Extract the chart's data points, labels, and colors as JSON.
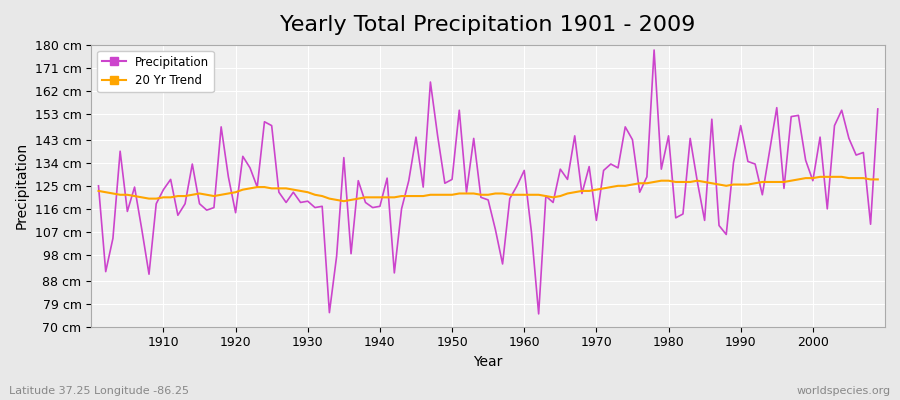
{
  "title": "Yearly Total Precipitation 1901 - 2009",
  "xlabel": "Year",
  "ylabel": "Precipitation",
  "subtitle": "Latitude 37.25 Longitude -86.25",
  "watermark": "worldspecies.org",
  "years": [
    1901,
    1902,
    1903,
    1904,
    1905,
    1906,
    1907,
    1908,
    1909,
    1910,
    1911,
    1912,
    1913,
    1914,
    1915,
    1916,
    1917,
    1918,
    1919,
    1920,
    1921,
    1922,
    1923,
    1924,
    1925,
    1926,
    1927,
    1928,
    1929,
    1930,
    1931,
    1932,
    1933,
    1934,
    1935,
    1936,
    1937,
    1938,
    1939,
    1940,
    1941,
    1942,
    1943,
    1944,
    1945,
    1946,
    1947,
    1948,
    1949,
    1950,
    1951,
    1952,
    1953,
    1954,
    1955,
    1956,
    1957,
    1958,
    1959,
    1960,
    1961,
    1962,
    1963,
    1964,
    1965,
    1966,
    1967,
    1968,
    1969,
    1970,
    1971,
    1972,
    1973,
    1974,
    1975,
    1976,
    1977,
    1978,
    1979,
    1980,
    1981,
    1982,
    1983,
    1984,
    1985,
    1986,
    1987,
    1988,
    1989,
    1990,
    1991,
    1992,
    1993,
    1994,
    1995,
    1996,
    1997,
    1998,
    1999,
    2000,
    2001,
    2002,
    2003,
    2004,
    2005,
    2006,
    2007,
    2008,
    2009
  ],
  "precipitation": [
    125.0,
    91.5,
    104.5,
    138.5,
    115.0,
    124.5,
    108.0,
    90.5,
    118.0,
    123.5,
    127.5,
    113.5,
    118.0,
    133.5,
    118.0,
    115.5,
    116.5,
    148.0,
    128.5,
    114.5,
    136.5,
    132.0,
    124.5,
    150.0,
    148.5,
    122.5,
    118.5,
    122.5,
    118.5,
    119.0,
    116.5,
    117.0,
    75.5,
    97.5,
    136.0,
    98.5,
    127.0,
    118.5,
    116.5,
    117.0,
    128.0,
    91.0,
    116.0,
    127.0,
    144.0,
    124.5,
    165.5,
    144.5,
    126.0,
    127.5,
    154.5,
    122.5,
    143.5,
    120.5,
    119.5,
    108.0,
    94.5,
    120.0,
    125.0,
    131.0,
    107.0,
    75.0,
    121.0,
    118.5,
    131.5,
    127.5,
    144.5,
    122.0,
    132.5,
    111.5,
    131.0,
    133.5,
    132.0,
    148.0,
    143.0,
    122.5,
    128.5,
    178.0,
    131.5,
    144.5,
    112.5,
    114.0,
    143.5,
    126.5,
    111.5,
    151.0,
    109.5,
    106.0,
    134.0,
    148.5,
    134.5,
    133.5,
    121.5,
    138.5,
    155.5,
    124.0,
    152.0,
    152.5,
    135.0,
    127.0,
    144.0,
    116.0,
    148.5,
    154.5,
    143.5,
    137.0,
    138.0,
    110.0,
    155.0
  ],
  "trend": [
    123.0,
    122.5,
    122.0,
    121.5,
    121.5,
    121.0,
    120.5,
    120.0,
    120.0,
    120.5,
    120.5,
    121.0,
    121.0,
    121.5,
    122.0,
    121.5,
    121.0,
    121.5,
    122.0,
    122.5,
    123.5,
    124.0,
    124.5,
    124.5,
    124.0,
    124.0,
    124.0,
    123.5,
    123.0,
    122.5,
    121.5,
    121.0,
    120.0,
    119.5,
    119.0,
    119.5,
    120.0,
    120.5,
    120.5,
    120.5,
    120.5,
    120.5,
    121.0,
    121.0,
    121.0,
    121.0,
    121.5,
    121.5,
    121.5,
    121.5,
    122.0,
    122.0,
    122.0,
    121.5,
    121.5,
    122.0,
    122.0,
    121.5,
    121.5,
    121.5,
    121.5,
    121.5,
    121.0,
    120.5,
    121.0,
    122.0,
    122.5,
    123.0,
    123.0,
    123.5,
    124.0,
    124.5,
    125.0,
    125.0,
    125.5,
    126.0,
    126.0,
    126.5,
    127.0,
    127.0,
    126.5,
    126.5,
    126.5,
    127.0,
    126.5,
    126.0,
    125.5,
    125.0,
    125.5,
    125.5,
    125.5,
    126.0,
    126.5,
    126.5,
    126.5,
    126.5,
    127.0,
    127.5,
    128.0,
    128.0,
    128.5,
    128.5,
    128.5,
    128.5,
    128.0,
    128.0,
    128.0,
    127.5,
    127.5
  ],
  "precip_color": "#cc44cc",
  "trend_color": "#ffa500",
  "bg_color": "#e8e8e8",
  "plot_bg_color": "#f0f0f0",
  "grid_color": "#ffffff",
  "ytick_labels": [
    "70 cm",
    "79 cm",
    "88 cm",
    "98 cm",
    "107 cm",
    "116 cm",
    "125 cm",
    "134 cm",
    "143 cm",
    "153 cm",
    "162 cm",
    "171 cm",
    "180 cm"
  ],
  "ytick_values": [
    70,
    79,
    88,
    98,
    107,
    116,
    125,
    134,
    143,
    153,
    162,
    171,
    180
  ],
  "ylim": [
    70,
    180
  ],
  "xlim": [
    1901,
    2009
  ],
  "xtick_values": [
    1910,
    1920,
    1930,
    1940,
    1950,
    1960,
    1970,
    1980,
    1990,
    2000
  ],
  "legend_labels": [
    "Precipitation",
    "20 Yr Trend"
  ],
  "title_fontsize": 16,
  "axis_label_fontsize": 10,
  "tick_fontsize": 9
}
